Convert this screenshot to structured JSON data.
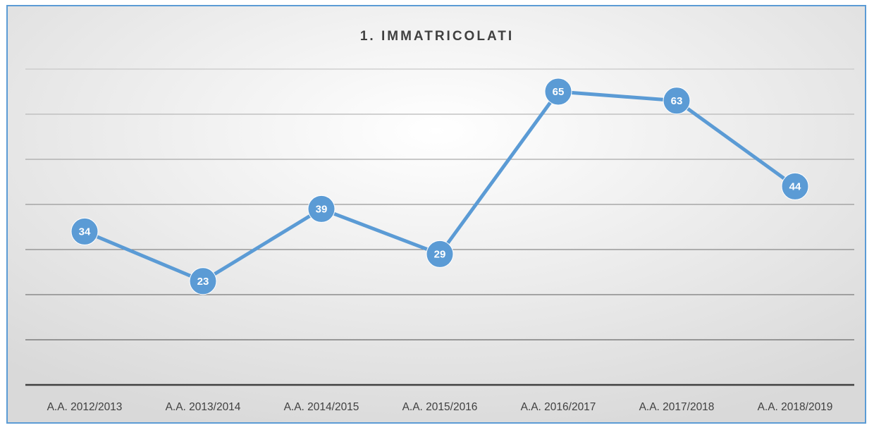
{
  "chart_data": {
    "type": "line",
    "title": "1. IMMATRICOLATI",
    "categories": [
      "A.A. 2012/2013",
      "A.A. 2013/2014",
      "A.A. 2014/2015",
      "A.A. 2015/2016",
      "A.A. 2016/2017",
      "A.A. 2017/2018",
      "A.A. 2018/2019"
    ],
    "values": [
      34,
      23,
      39,
      29,
      65,
      63,
      44
    ],
    "color": "#5b9bd5",
    "ylim": [
      0,
      70
    ],
    "yticks": [
      0,
      10,
      20,
      30,
      40,
      50,
      60,
      70
    ],
    "grid": true
  }
}
